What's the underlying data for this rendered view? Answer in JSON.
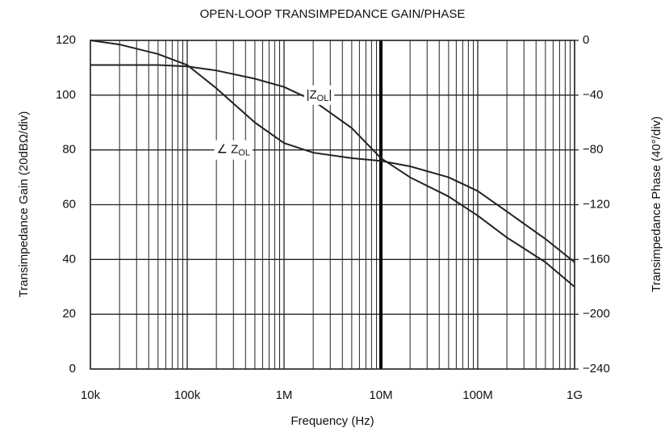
{
  "chart_data": {
    "type": "line",
    "title": "OPEN-LOOP TRANSIMPEDANCE GAIN/PHASE",
    "xlabel": "Frequency (Hz)",
    "ylabel": "Transimpedance Gain (20dBΩ/div)",
    "y2label": "Transimpedance Phase (40°/div)",
    "xscale": "log",
    "grid": true,
    "marker_x": 10000000,
    "x": [
      10000,
      20000,
      50000,
      100000,
      200000,
      500000,
      1000000,
      2000000,
      5000000,
      10000000,
      20000000,
      50000000,
      100000000,
      200000000,
      500000000,
      1000000000
    ],
    "series": [
      {
        "name": "|ZOL|",
        "color": "#222222",
        "values": [
          111,
          111,
          111,
          110.5,
          109,
          106,
          103,
          98,
          88,
          77,
          70,
          63,
          56,
          48,
          39,
          30
        ]
      },
      {
        "name": "∠ZOL",
        "color": "#222222",
        "axis": "y2",
        "values": [
          0,
          -3,
          -10,
          -18,
          -35,
          -60,
          -75,
          -82,
          -86,
          -88,
          -92,
          -100,
          -110,
          -125,
          -145,
          -162
        ]
      }
    ],
    "annotations": [
      {
        "text": "|Z",
        "subscript": "OL",
        "suffix": "|",
        "x": 2300000,
        "y": 100
      },
      {
        "text": "∠ Z",
        "subscript": "OL",
        "x": 300000,
        "y": 80
      }
    ],
    "xlim": [
      10000,
      1000000000
    ],
    "xticks": [
      {
        "value": 10000,
        "label": "10k"
      },
      {
        "value": 100000,
        "label": "100k"
      },
      {
        "value": 1000000,
        "label": "1M"
      },
      {
        "value": 10000000,
        "label": "10M"
      },
      {
        "value": 100000000,
        "label": "100M"
      },
      {
        "value": 1000000000,
        "label": "1G"
      }
    ],
    "ylim": [
      0,
      120
    ],
    "yticks": [
      0,
      20,
      40,
      60,
      80,
      100,
      120
    ],
    "y2lim": [
      -240,
      0
    ],
    "y2ticks": [
      {
        "value": -240,
        "label": "−240"
      },
      {
        "value": -200,
        "label": "−200"
      },
      {
        "value": -160,
        "label": "−160"
      },
      {
        "value": -120,
        "label": "−120"
      },
      {
        "value": -80,
        "label": "−80"
      },
      {
        "value": -40,
        "label": "−40"
      },
      0
    ]
  }
}
